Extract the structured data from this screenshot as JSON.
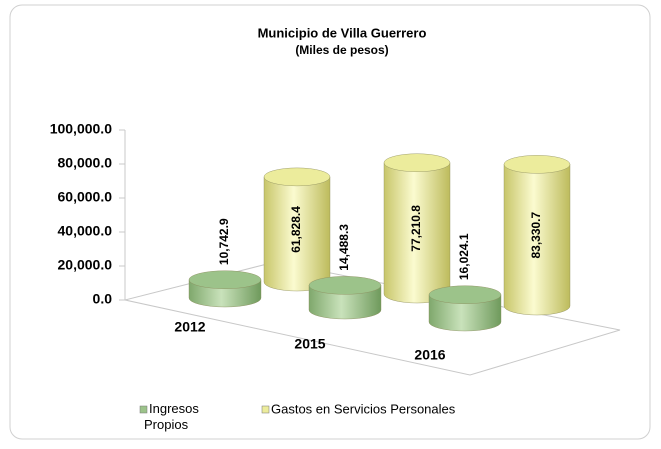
{
  "chart_data": {
    "type": "bar3d",
    "title": "Municipio de Villa Guerrero",
    "subtitle": "(Miles de pesos)",
    "categories": [
      "2012",
      "2015",
      "2016"
    ],
    "series": [
      {
        "name": "Ingresos Propios",
        "color": "#9cc38a",
        "values": [
          10742.9,
          14488.3,
          16024.1
        ],
        "value_labels": [
          "10,742.9",
          "14,488.3",
          "16,024.1"
        ]
      },
      {
        "name": "Gastos en Servicios Personales",
        "color": "#ecec9c",
        "values": [
          61828.4,
          77210.8,
          83330.7
        ],
        "value_labels": [
          "61,828.4",
          "77,210.8",
          "83,330.7"
        ]
      }
    ],
    "ylim": [
      0,
      100000
    ],
    "yticks": [
      {
        "value": 0,
        "label": "0.0"
      },
      {
        "value": 20000,
        "label": "20,000.0"
      },
      {
        "value": 40000,
        "label": "40,000.0"
      },
      {
        "value": 60000,
        "label": "60,000.0"
      },
      {
        "value": 80000,
        "label": "80,000.0"
      },
      {
        "value": 100000,
        "label": "100,000.0"
      }
    ],
    "legend": "bottom"
  }
}
